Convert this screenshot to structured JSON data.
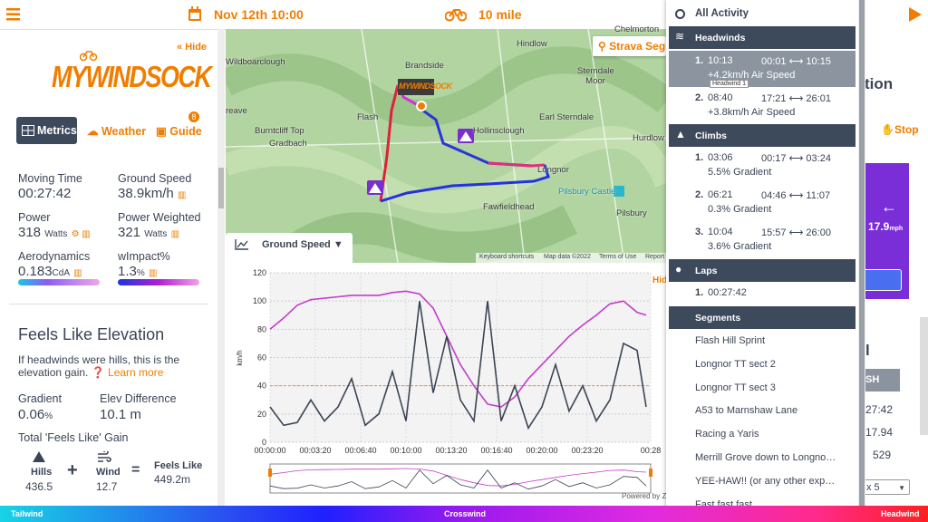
{
  "top_bar": {
    "date": "Nov 12th 10:00",
    "distance": "10 mile"
  },
  "sidebar": {
    "hide": "Hide",
    "logo": "MYWINDSOCK",
    "tabs": [
      "Metrics",
      "Weather",
      "Guide"
    ],
    "guide_badge": "8",
    "metrics": [
      {
        "label": "Moving Time",
        "value": "00:27:42"
      },
      {
        "label": "Ground Speed",
        "value": "38.9",
        "unit": "km/h"
      },
      {
        "label": "Power",
        "value": "318",
        "unit": "Watts"
      },
      {
        "label": "Power Weighted",
        "value": "321",
        "unit": "Watts"
      },
      {
        "label": "Aerodynamics",
        "value": "0.183",
        "unit": "CdA"
      },
      {
        "label": "wImpact%",
        "value": "1.3",
        "unit": "%"
      }
    ],
    "feels_like": {
      "title": "Feels Like Elevation",
      "description": "If headwinds were hills, this is the elevation gain.",
      "learn_more": "Learn more",
      "gradient_label": "Gradient",
      "gradient_value": "0.06",
      "gradient_unit": "%",
      "elev_label": "Elev Difference",
      "elev_value": "10.1 m",
      "total_label": "Total 'Feels Like' Gain",
      "hills_label": "Hills",
      "hills_value": "436.5",
      "wind_label": "Wind",
      "wind_value": "12.7",
      "result_label": "Feels Like",
      "result_value": "449.2m"
    }
  },
  "map": {
    "strava_button": "Strava Segm",
    "places": [
      "Chelmorton",
      "Hindlow",
      "Wildboarclough",
      "Brandside",
      "Sterndale Moor",
      "reave",
      "Flash",
      "Hollinsclough",
      "Earl Sterndale",
      "Burntcliff Top",
      "Gradbach",
      "Hurdlow",
      "Longnor",
      "Pilsbury Castle",
      "Fawfieldhead",
      "Pilsbury"
    ],
    "footer": [
      "Keyboard shortcuts",
      "Map data ©2022",
      "Terms of Use",
      "Report"
    ]
  },
  "chart_data": {
    "type": "line",
    "title": "Ground Speed",
    "y_label": "km/h",
    "hide": "Hide",
    "credit": "Powered by Z",
    "x": [
      0,
      60,
      120,
      180,
      240,
      300,
      360,
      420,
      480,
      540,
      600,
      660,
      720,
      780,
      840,
      900,
      960,
      1020,
      1080,
      1140,
      1200,
      1260,
      1320,
      1380,
      1440,
      1500,
      1560,
      1620,
      1660
    ],
    "series": [
      {
        "color": "#c43ccc",
        "values": [
          80,
          88,
          97,
          101,
          102,
          103,
          104,
          104,
          104,
          106,
          107,
          105,
          95,
          75,
          55,
          40,
          27,
          25,
          32,
          45,
          55,
          65,
          75,
          83,
          90,
          98,
          100,
          92,
          90
        ]
      },
      {
        "color": "#3b4455",
        "values": [
          25,
          12,
          14,
          30,
          15,
          25,
          45,
          12,
          20,
          50,
          15,
          100,
          35,
          75,
          30,
          15,
          100,
          15,
          40,
          10,
          25,
          55,
          22,
          40,
          15,
          30,
          70,
          65,
          25
        ]
      }
    ],
    "reference_line": 40,
    "reference_color": "#f08a5d",
    "xlim": [
      0,
      1680
    ],
    "ylim": [
      0,
      120
    ],
    "yticks": [
      0,
      20,
      40,
      60,
      80,
      100,
      120
    ],
    "xticks": [
      {
        "value": 0,
        "label": "00:00:00"
      },
      {
        "value": 200,
        "label": "00:03:20"
      },
      {
        "value": 400,
        "label": "00:06:40"
      },
      {
        "value": 600,
        "label": "00:10:00"
      },
      {
        "value": 800,
        "label": "00:13:20"
      },
      {
        "value": 1000,
        "label": "00:16:40"
      },
      {
        "value": 1200,
        "label": "00:20:00"
      },
      {
        "value": 1400,
        "label": "00:23:20"
      },
      {
        "value": 1680,
        "label": "00:28"
      }
    ],
    "grid": true
  },
  "dropdown": {
    "all_activity": "All Activity",
    "headwinds": {
      "title": "Headwinds",
      "tooltip": "Headwind 1",
      "items": [
        {
          "num": "1.",
          "time": "10:13",
          "range": "00:01 ⟷ 10:15",
          "detail": "+4.2km/h Air Speed"
        },
        {
          "num": "2.",
          "time": "08:40",
          "range": "17:21 ⟷ 26:01",
          "detail": "+3.8km/h Air Speed"
        }
      ]
    },
    "climbs": {
      "title": "Climbs",
      "items": [
        {
          "num": "1.",
          "time": "03:06",
          "range": "00:17 ⟷ 03:24",
          "detail": "5.5% Gradient"
        },
        {
          "num": "2.",
          "time": "06:21",
          "range": "04:46 ⟷ 11:07",
          "detail": "0.3% Gradient"
        },
        {
          "num": "3.",
          "time": "10:04",
          "range": "15:57 ⟷ 26:00",
          "detail": "3.6% Gradient"
        }
      ]
    },
    "laps": {
      "title": "Laps",
      "items": [
        {
          "num": "1.",
          "time": "00:27:42"
        }
      ]
    },
    "segments": {
      "title": "Segments",
      "items": [
        "Flash Hill Sprint",
        "Longnor TT sect 2",
        "Longnor TT sect 3",
        "A53 to Marnshaw Lane",
        "Racing a Yaris",
        "Merrill Grove down to Longno…",
        "YEE-HAW!! (or any other exp…",
        "Fast fast fast"
      ]
    }
  },
  "right_panel": {
    "heading": "tion",
    "stop": "Stop",
    "speed": "17.9",
    "speed_unit": "mph",
    "digit": "l",
    "button": "SH",
    "rows": [
      "27:42",
      "17.94",
      "529"
    ],
    "select": "x 5"
  },
  "bottom_bar": {
    "left": "Tailwind",
    "center": "Crosswind",
    "right": "Headwind"
  }
}
